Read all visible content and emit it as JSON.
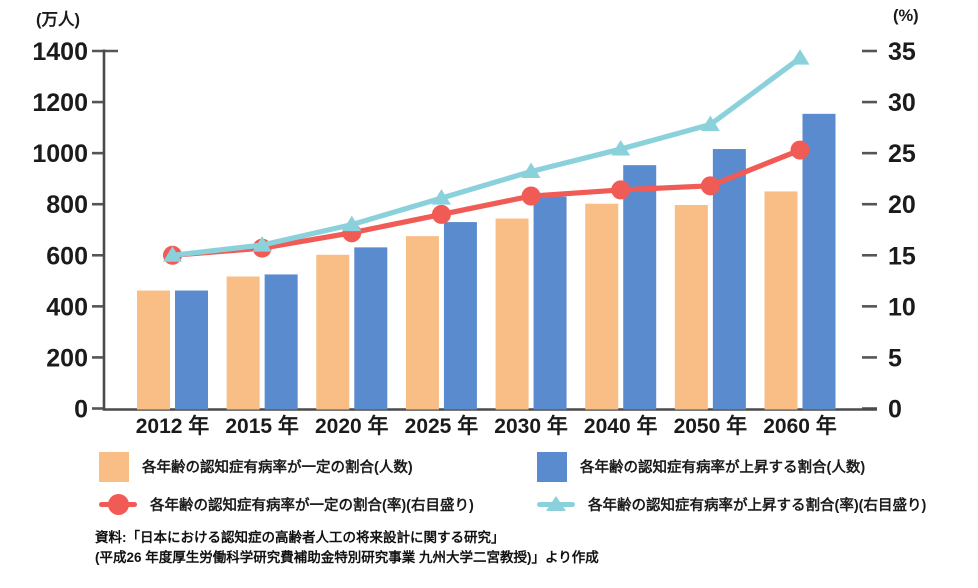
{
  "axis_left": {
    "unit": "(万人)",
    "ticks": [
      0,
      200,
      400,
      600,
      800,
      1000,
      1200,
      1400
    ]
  },
  "axis_right": {
    "unit": "(%)",
    "ticks": [
      0,
      5,
      10,
      15,
      20,
      25,
      30,
      35
    ]
  },
  "chart_data": {
    "type": "bar",
    "subtype": "dual-axis bar and line",
    "categories": [
      "2012 年",
      "2015 年",
      "2020 年",
      "2025 年",
      "2030 年",
      "2040 年",
      "2050 年",
      "2060 年"
    ],
    "series": [
      {
        "name": "各年齢の認知症有病率が一定の割合(人数)",
        "kind": "bar",
        "axis": "left",
        "unit": "万人",
        "color": "#F9BE86",
        "values": [
          462,
          517,
          602,
          675,
          744,
          802,
          797,
          850
        ]
      },
      {
        "name": "各年齢の認知症有病率が上昇する割合(人数)",
        "kind": "bar",
        "axis": "left",
        "unit": "万人",
        "color": "#5A8BCE",
        "values": [
          462,
          525,
          631,
          730,
          830,
          953,
          1016,
          1154
        ]
      },
      {
        "name": "各年齢の認知症有病率が一定の割合(率)(右目盛り)",
        "kind": "line",
        "marker": "circle",
        "axis": "right",
        "unit": "%",
        "color": "#F15B55",
        "values": [
          15.0,
          15.7,
          17.2,
          19.0,
          20.8,
          21.4,
          21.8,
          25.3
        ]
      },
      {
        "name": "各年齢の認知症有病率が上昇する割合(率)(右目盛り)",
        "kind": "line",
        "marker": "triangle",
        "axis": "right",
        "unit": "%",
        "color": "#8BD1DC",
        "values": [
          15.0,
          16.0,
          18.0,
          20.6,
          23.2,
          25.4,
          27.8,
          34.3
        ]
      }
    ],
    "ylim_left": [
      0,
      1400
    ],
    "ylim_right": [
      0,
      35
    ],
    "grid": false,
    "legend_position": "bottom"
  },
  "legend": {
    "items": [
      {
        "label": "各年齢の認知症有病率が一定の割合(人数)",
        "marker": "square",
        "color": "#F9BE86"
      },
      {
        "label": "各年齢の認知症有病率が上昇する割合(人数)",
        "marker": "square",
        "color": "#5A8BCE"
      },
      {
        "label": "各年齢の認知症有病率が一定の割合(率)(右目盛り)",
        "marker": "circle",
        "color": "#F15B55"
      },
      {
        "label": "各年齢の認知症有病率が上昇する割合(率)(右目盛り)",
        "marker": "triangle",
        "color": "#8BD1DC"
      }
    ]
  },
  "source": {
    "line1": "資料:「日本における認知症の高齢者人工の将来設計に関する研究」",
    "line2": "(平成26 年度厚生労働科学研究費補助金特別研究事業 九州大学二宮教授)」より作成"
  }
}
